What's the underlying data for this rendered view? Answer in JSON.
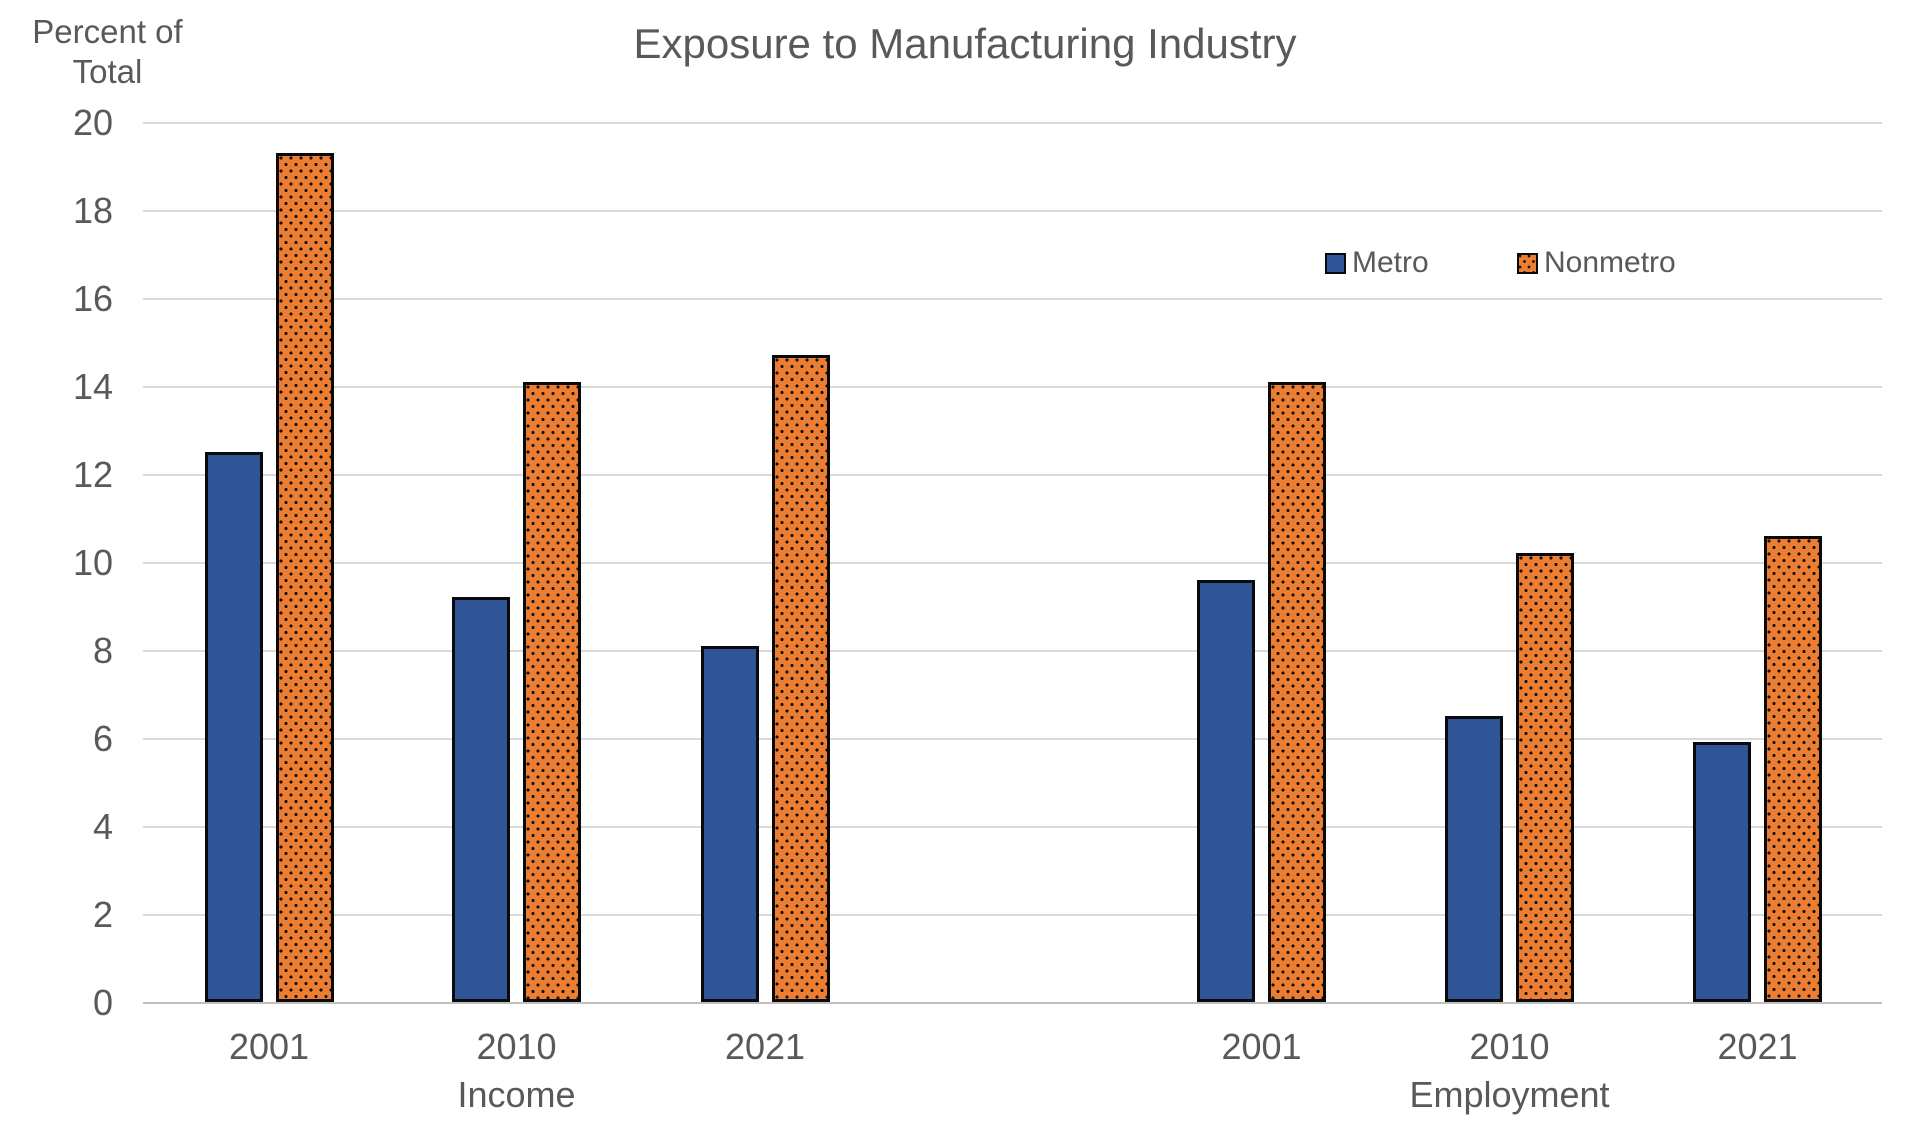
{
  "title": "Exposure to Manufacturing Industry",
  "y_axis_title": {
    "line1": "Percent of",
    "line2": "Total"
  },
  "legend": [
    {
      "label": "Metro",
      "style": "solid",
      "color": "#2F5597"
    },
    {
      "label": "Nonmetro",
      "style": "dots",
      "color": "#ED7D31"
    }
  ],
  "colors": {
    "metro": "#2F5597",
    "nonmetro": "#ED7D31",
    "bar_border": "#0a0a0a",
    "text": "#595959",
    "gridline": "#D9D9D9",
    "axis_line": "#BFBFBF"
  },
  "chart_data": {
    "type": "bar",
    "title": "Exposure to Manufacturing Industry",
    "ylabel": "Percent of Total",
    "xlabel": "",
    "ylim": [
      0,
      20
    ],
    "ytick_step": 2,
    "yticks": [
      0,
      2,
      4,
      6,
      8,
      10,
      12,
      14,
      16,
      18,
      20
    ],
    "grid": true,
    "legend_position": "inside-upper-right",
    "groups": [
      {
        "group": "Income",
        "categories": [
          "2001",
          "2010",
          "2021"
        ],
        "series": [
          {
            "name": "Metro",
            "values": [
              12.5,
              9.2,
              8.1
            ]
          },
          {
            "name": "Nonmetro",
            "values": [
              19.3,
              14.1,
              14.7
            ]
          }
        ]
      },
      {
        "group": "Employment",
        "categories": [
          "2001",
          "2010",
          "2021"
        ],
        "series": [
          {
            "name": "Metro",
            "values": [
              9.6,
              6.5,
              5.9
            ]
          },
          {
            "name": "Nonmetro",
            "values": [
              14.1,
              10.2,
              10.6
            ]
          }
        ]
      }
    ]
  }
}
